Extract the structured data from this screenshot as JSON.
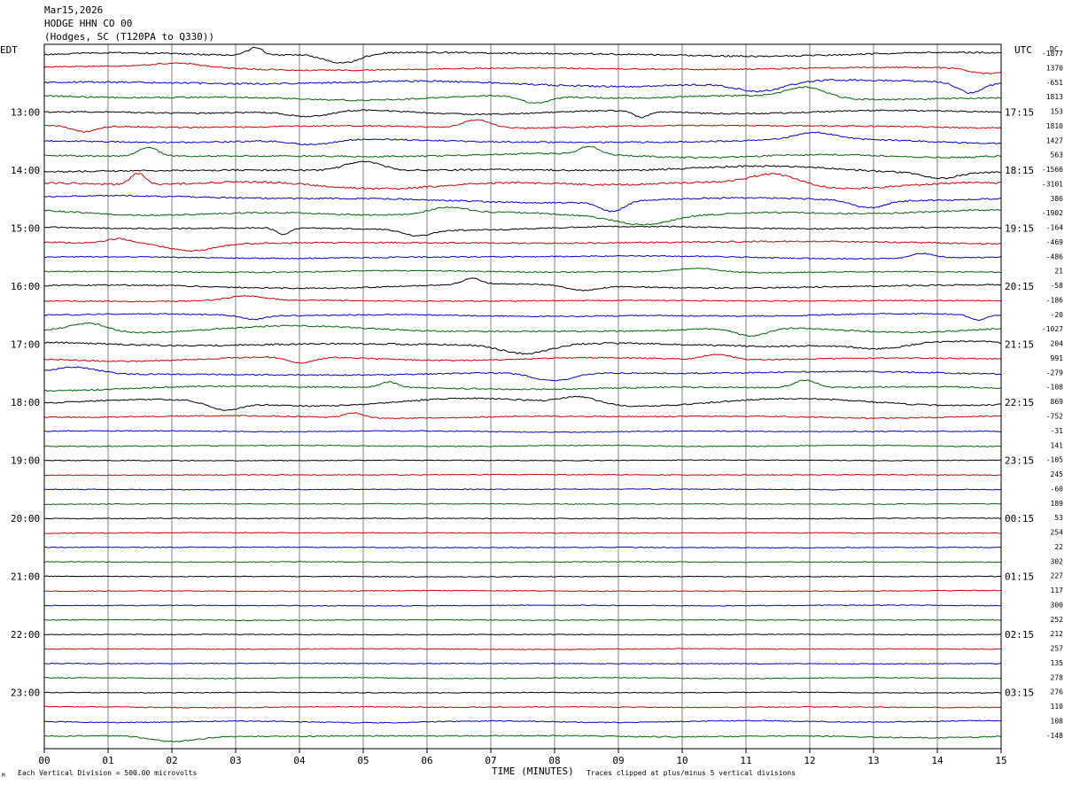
{
  "header": {
    "date": "Mar15,2026",
    "station": "HODGE HHN CO 00",
    "location": "(Hodges, SC (T120PA to Q330))"
  },
  "left_timezone": "EDT",
  "right_timezone": "UTC",
  "dc_header": "DC",
  "footer": {
    "scale_note": "Each Vertical Division =  500.00 microvolts",
    "clip_note": "Traces clipped at plus/minus 5 vertical divisions",
    "corner_mark": "M"
  },
  "colors": {
    "trace_cycle": [
      "#000000",
      "#cc0000",
      "#0000cc",
      "#006600"
    ],
    "grid": "#808080"
  },
  "chart_data": {
    "type": "line",
    "title": "HODGE HHN CO 00",
    "xlabel": "TIME (MINUTES)",
    "x_ticks": [
      "00",
      "01",
      "02",
      "03",
      "04",
      "05",
      "06",
      "07",
      "08",
      "09",
      "10",
      "11",
      "12",
      "13",
      "14",
      "15"
    ],
    "xlim": [
      0,
      15
    ],
    "rows_per_hour": 4,
    "row_count": 48,
    "left_hour_labels": [
      {
        "row": 4,
        "label": "13:00"
      },
      {
        "row": 8,
        "label": "14:00"
      },
      {
        "row": 12,
        "label": "15:00"
      },
      {
        "row": 16,
        "label": "16:00"
      },
      {
        "row": 20,
        "label": "17:00"
      },
      {
        "row": 24,
        "label": "18:00"
      },
      {
        "row": 28,
        "label": "19:00"
      },
      {
        "row": 32,
        "label": "20:00"
      },
      {
        "row": 36,
        "label": "21:00"
      },
      {
        "row": 40,
        "label": "22:00"
      },
      {
        "row": 44,
        "label": "23:00"
      }
    ],
    "right_hour_labels": [
      {
        "row": 4,
        "label": "17:15"
      },
      {
        "row": 8,
        "label": "18:15"
      },
      {
        "row": 12,
        "label": "19:15"
      },
      {
        "row": 16,
        "label": "20:15"
      },
      {
        "row": 20,
        "label": "21:15"
      },
      {
        "row": 24,
        "label": "22:15"
      },
      {
        "row": 28,
        "label": "23:15"
      },
      {
        "row": 32,
        "label": "00:15"
      },
      {
        "row": 36,
        "label": "01:15"
      },
      {
        "row": 40,
        "label": "02:15"
      },
      {
        "row": 44,
        "label": "03:15"
      }
    ],
    "dc_offsets": [
      "-1877",
      "1370",
      "-651",
      "1813",
      "153",
      "1810",
      "1427",
      "563",
      "-1566",
      "-3101",
      "386",
      "-1902",
      "-164",
      "-469",
      "-486",
      "21",
      "-58",
      "-186",
      "-20",
      "-1027",
      "204",
      "991",
      "-279",
      "-108",
      "869",
      "-752",
      "-31",
      "141",
      "-105",
      "245",
      "-60",
      "189",
      "53",
      "254",
      "22",
      "302",
      "227",
      "117",
      "300",
      "252",
      "212",
      "257",
      "135",
      "278",
      "276",
      "110",
      "108",
      "-148"
    ],
    "row_activity": [
      2.6,
      1.8,
      3.2,
      2.4,
      2.2,
      2.0,
      2.2,
      2.6,
      3.0,
      3.6,
      2.4,
      2.4,
      1.8,
      2.2,
      1.4,
      1.2,
      1.8,
      1.4,
      1.6,
      2.4,
      2.8,
      1.8,
      2.0,
      2.2,
      2.2,
      1.4,
      0.6,
      0.6,
      0.3,
      0.3,
      0.3,
      0.3,
      0.3,
      0.3,
      0.3,
      0.3,
      0.3,
      0.3,
      0.3,
      0.3,
      0.3,
      0.3,
      0.3,
      0.3,
      0.3,
      0.5,
      0.8,
      1.4
    ]
  }
}
